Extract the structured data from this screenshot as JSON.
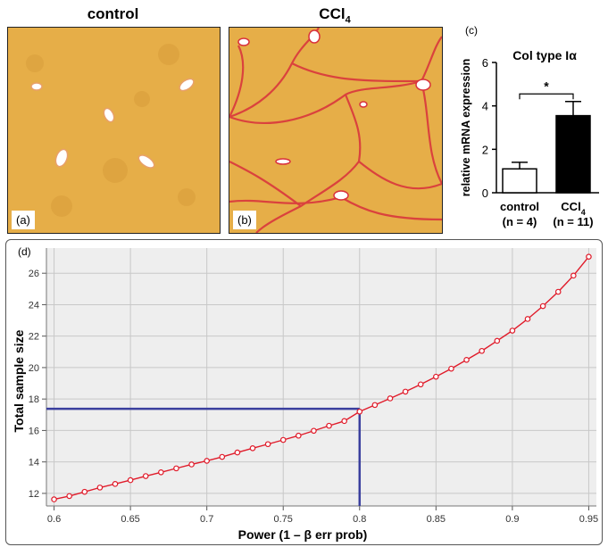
{
  "panels": {
    "a": {
      "title": "control",
      "tag": "(a)"
    },
    "b": {
      "title": "CCl",
      "title_sub": "4",
      "tag": "(b)"
    }
  },
  "colors": {
    "tissue": "#e6ae48",
    "fibrosis": "#d9303c",
    "bar_control": "#ffffff",
    "bar_ccl4": "#000000",
    "curve": "#e01b2a",
    "guide": "#3a3f9e",
    "plot_bg": "#eeeeee",
    "grid": "#c8c8c8"
  },
  "chart_data": [
    {
      "type": "bar",
      "panel_label": "(c)",
      "title": "Col type Iα",
      "ylabel": "relative mRNA expression",
      "ylim": [
        0,
        6
      ],
      "yticks": [
        "0",
        "2",
        "4",
        "6"
      ],
      "categories": [
        {
          "name": "control",
          "n": "(n = 4)"
        },
        {
          "name": "CCl",
          "sub": "4",
          "n": "(n = 11)"
        }
      ],
      "values": [
        1.1,
        3.55
      ],
      "errors": [
        0.3,
        0.65
      ],
      "significance": "*"
    },
    {
      "type": "line",
      "panel_label": "(d)",
      "xlabel": "Power (1 – β err prob)",
      "ylabel": "Total sample size",
      "xlim": [
        0.595,
        0.955
      ],
      "ylim": [
        11.2,
        27.6
      ],
      "xticks": [
        "0.6",
        "0.65",
        "0.7",
        "0.75",
        "0.8",
        "0.85",
        "0.9",
        "0.95"
      ],
      "yticks": [
        "12",
        "14",
        "16",
        "18",
        "20",
        "22",
        "24",
        "26"
      ],
      "x": [
        0.6,
        0.61,
        0.62,
        0.63,
        0.64,
        0.65,
        0.66,
        0.67,
        0.68,
        0.69,
        0.7,
        0.71,
        0.72,
        0.73,
        0.74,
        0.75,
        0.76,
        0.77,
        0.78,
        0.79,
        0.8,
        0.81,
        0.82,
        0.83,
        0.84,
        0.85,
        0.86,
        0.87,
        0.88,
        0.89,
        0.9,
        0.91,
        0.92,
        0.93,
        0.94,
        0.95
      ],
      "y": [
        11.62,
        11.83,
        12.1,
        12.37,
        12.6,
        12.84,
        13.1,
        13.34,
        13.59,
        13.84,
        14.07,
        14.32,
        14.6,
        14.87,
        15.13,
        15.4,
        15.67,
        15.98,
        16.3,
        16.6,
        17.2,
        17.62,
        18.04,
        18.47,
        18.93,
        19.42,
        19.93,
        20.49,
        21.06,
        21.7,
        22.35,
        23.09,
        23.91,
        24.82,
        25.85,
        27.05
      ],
      "reference": {
        "power": 0.8,
        "sample_size": 17.38
      }
    }
  ]
}
